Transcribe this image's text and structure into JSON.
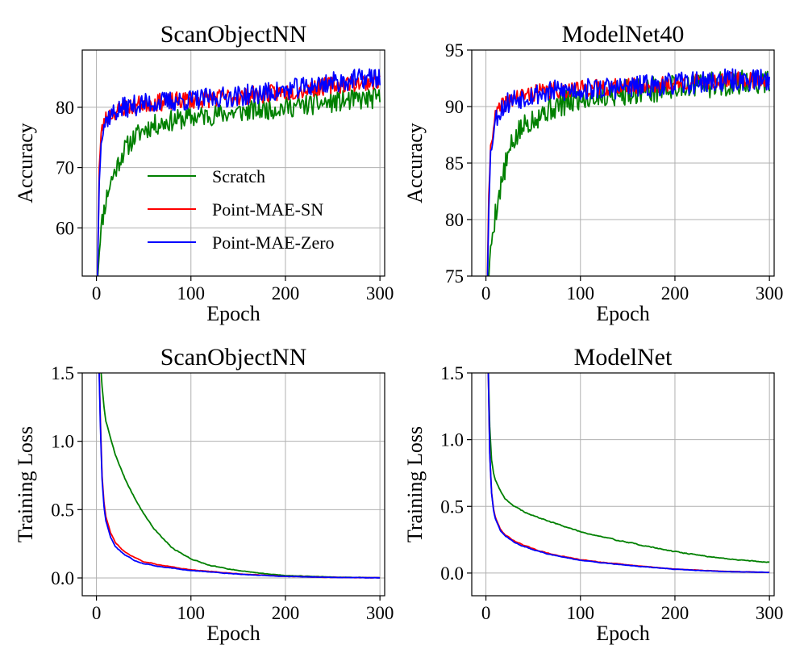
{
  "chart_data": [
    {
      "type": "line",
      "id": "acc_scan",
      "title": "ScanObjectNN",
      "xlabel": "Epoch",
      "ylabel": "Accuracy",
      "xlim": [
        -15,
        305
      ],
      "ylim": [
        52,
        89.5
      ],
      "xticks": [
        0,
        100,
        200,
        300
      ],
      "yticks": [
        60,
        70,
        80
      ],
      "grid": true,
      "legend": "lower-right",
      "series": [
        {
          "name": "Scratch",
          "color": "#008000",
          "kind": "acc",
          "x": [
            1,
            3,
            5,
            8,
            12,
            16,
            20,
            25,
            30,
            40,
            50,
            60,
            80,
            100,
            120,
            150,
            180,
            200,
            230,
            260,
            280,
            300
          ],
          "y": [
            51,
            56,
            60,
            63,
            66,
            68,
            69.5,
            71.5,
            73,
            75,
            76.3,
            77,
            77.8,
            78.3,
            78.7,
            79.2,
            79.7,
            80,
            80.5,
            81,
            81.3,
            81.5
          ],
          "noise": 1.3,
          "seed": 11
        },
        {
          "name": "Point-MAE-SN",
          "color": "#ff0000",
          "kind": "acc",
          "x": [
            1,
            3,
            5,
            8,
            12,
            20,
            30,
            50,
            80,
            100,
            150,
            200,
            250,
            300
          ],
          "y": [
            51,
            70,
            75.5,
            77.5,
            78.5,
            79.3,
            80,
            80.6,
            81,
            81.2,
            81.8,
            82.5,
            83.7,
            84.5
          ],
          "noise": 1.1,
          "seed": 23
        },
        {
          "name": "Point-MAE-Zero",
          "color": "#0000ff",
          "kind": "acc",
          "x": [
            1,
            3,
            5,
            8,
            12,
            20,
            30,
            50,
            80,
            100,
            150,
            200,
            250,
            300
          ],
          "y": [
            51,
            68,
            74.5,
            77,
            78.3,
            79.3,
            80,
            80.6,
            81,
            81.2,
            81.9,
            82.8,
            84.2,
            85
          ],
          "noise": 1.3,
          "seed": 37
        }
      ]
    },
    {
      "type": "line",
      "id": "acc_model",
      "title": "ModelNet40",
      "xlabel": "Epoch",
      "ylabel": "Accuracy",
      "xlim": [
        -15,
        305
      ],
      "ylim": [
        75,
        95
      ],
      "xticks": [
        0,
        100,
        200,
        300
      ],
      "yticks": [
        75,
        80,
        85,
        90,
        95
      ],
      "grid": true,
      "series": [
        {
          "name": "Scratch",
          "color": "#008000",
          "kind": "acc",
          "x": [
            1,
            3,
            5,
            8,
            12,
            16,
            20,
            25,
            30,
            40,
            50,
            60,
            80,
            100,
            120,
            150,
            200,
            250,
            300
          ],
          "y": [
            72,
            75,
            77.5,
            79.5,
            81.5,
            83,
            84.5,
            86,
            87,
            88.3,
            89,
            89.5,
            90.2,
            90.7,
            91,
            91.3,
            91.7,
            92,
            92.2
          ],
          "noise": 0.85,
          "seed": 5
        },
        {
          "name": "Point-MAE-SN",
          "color": "#ff0000",
          "kind": "acc",
          "x": [
            1,
            3,
            5,
            8,
            12,
            20,
            30,
            50,
            80,
            100,
            150,
            200,
            250,
            300
          ],
          "y": [
            72,
            82,
            86.5,
            88.5,
            89.5,
            90.3,
            90.8,
            91.2,
            91.5,
            91.6,
            91.8,
            92,
            92.3,
            92.4
          ],
          "noise": 0.55,
          "seed": 41
        },
        {
          "name": "Point-MAE-Zero",
          "color": "#0000ff",
          "kind": "acc",
          "x": [
            1,
            3,
            5,
            8,
            12,
            20,
            30,
            50,
            80,
            100,
            150,
            200,
            250,
            300
          ],
          "y": [
            72,
            81,
            86,
            88,
            89.3,
            90.2,
            90.7,
            91.1,
            91.4,
            91.5,
            91.7,
            92,
            92.3,
            92.4
          ],
          "noise": 0.75,
          "seed": 53
        }
      ]
    },
    {
      "type": "line",
      "id": "loss_scan",
      "title": "ScanObjectNN",
      "xlabel": "Epoch",
      "ylabel": "Training Loss",
      "xlim": [
        -15,
        305
      ],
      "ylim": [
        -0.13,
        1.5
      ],
      "xticks": [
        0,
        100,
        200,
        300
      ],
      "yticks": [
        0.0,
        0.5,
        1.0,
        1.5
      ],
      "grid": true,
      "series": [
        {
          "name": "Scratch",
          "color": "#008000",
          "kind": "loss",
          "x": [
            2,
            4,
            6,
            8,
            10,
            15,
            20,
            30,
            40,
            50,
            60,
            70,
            80,
            100,
            120,
            150,
            180,
            200,
            250,
            300
          ],
          "y": [
            1.9,
            1.6,
            1.4,
            1.25,
            1.15,
            1.02,
            0.9,
            0.73,
            0.59,
            0.47,
            0.37,
            0.29,
            0.22,
            0.14,
            0.09,
            0.055,
            0.03,
            0.018,
            0.006,
            0.002
          ],
          "noise": 0.006,
          "seed": 7
        },
        {
          "name": "Point-MAE-SN",
          "color": "#ff0000",
          "kind": "loss",
          "x": [
            2,
            4,
            6,
            8,
            10,
            15,
            20,
            30,
            40,
            50,
            70,
            100,
            150,
            200,
            250,
            300
          ],
          "y": [
            1.8,
            1.2,
            0.75,
            0.55,
            0.45,
            0.33,
            0.26,
            0.19,
            0.15,
            0.12,
            0.09,
            0.06,
            0.03,
            0.012,
            0.004,
            0.001
          ],
          "noise": 0.005,
          "seed": 13
        },
        {
          "name": "Point-MAE-Zero",
          "color": "#0000ff",
          "kind": "loss",
          "x": [
            2,
            4,
            6,
            8,
            10,
            15,
            20,
            30,
            40,
            50,
            70,
            100,
            150,
            200,
            250,
            300
          ],
          "y": [
            1.8,
            1.15,
            0.72,
            0.52,
            0.42,
            0.3,
            0.23,
            0.17,
            0.13,
            0.105,
            0.08,
            0.055,
            0.028,
            0.011,
            0.004,
            0.001
          ],
          "noise": 0.005,
          "seed": 17
        }
      ]
    },
    {
      "type": "line",
      "id": "loss_model",
      "title": "ModelNet",
      "xlabel": "Epoch",
      "ylabel": "Training Loss",
      "xlim": [
        -15,
        305
      ],
      "ylim": [
        -0.17,
        1.5
      ],
      "xticks": [
        0,
        100,
        200,
        300
      ],
      "yticks": [
        0.0,
        0.5,
        1.0,
        1.5
      ],
      "grid": true,
      "series": [
        {
          "name": "Scratch",
          "color": "#008000",
          "kind": "loss",
          "x": [
            2,
            4,
            6,
            8,
            10,
            15,
            20,
            30,
            40,
            50,
            70,
            100,
            130,
            150,
            200,
            250,
            300
          ],
          "y": [
            1.7,
            1.1,
            0.85,
            0.75,
            0.7,
            0.62,
            0.56,
            0.5,
            0.46,
            0.43,
            0.38,
            0.31,
            0.26,
            0.23,
            0.16,
            0.11,
            0.08
          ],
          "noise": 0.006,
          "seed": 19
        },
        {
          "name": "Point-MAE-SN",
          "color": "#ff0000",
          "kind": "loss",
          "x": [
            2,
            4,
            6,
            8,
            10,
            15,
            20,
            30,
            40,
            50,
            70,
            100,
            150,
            200,
            250,
            300
          ],
          "y": [
            1.7,
            0.9,
            0.6,
            0.48,
            0.42,
            0.33,
            0.29,
            0.24,
            0.21,
            0.18,
            0.14,
            0.1,
            0.06,
            0.03,
            0.013,
            0.005
          ],
          "noise": 0.005,
          "seed": 29
        },
        {
          "name": "Point-MAE-Zero",
          "color": "#0000ff",
          "kind": "loss",
          "x": [
            2,
            4,
            6,
            8,
            10,
            15,
            20,
            30,
            40,
            50,
            70,
            100,
            150,
            200,
            250,
            300
          ],
          "y": [
            1.7,
            0.9,
            0.6,
            0.47,
            0.41,
            0.32,
            0.28,
            0.23,
            0.2,
            0.175,
            0.135,
            0.095,
            0.058,
            0.028,
            0.012,
            0.005
          ],
          "noise": 0.005,
          "seed": 31
        }
      ]
    }
  ]
}
